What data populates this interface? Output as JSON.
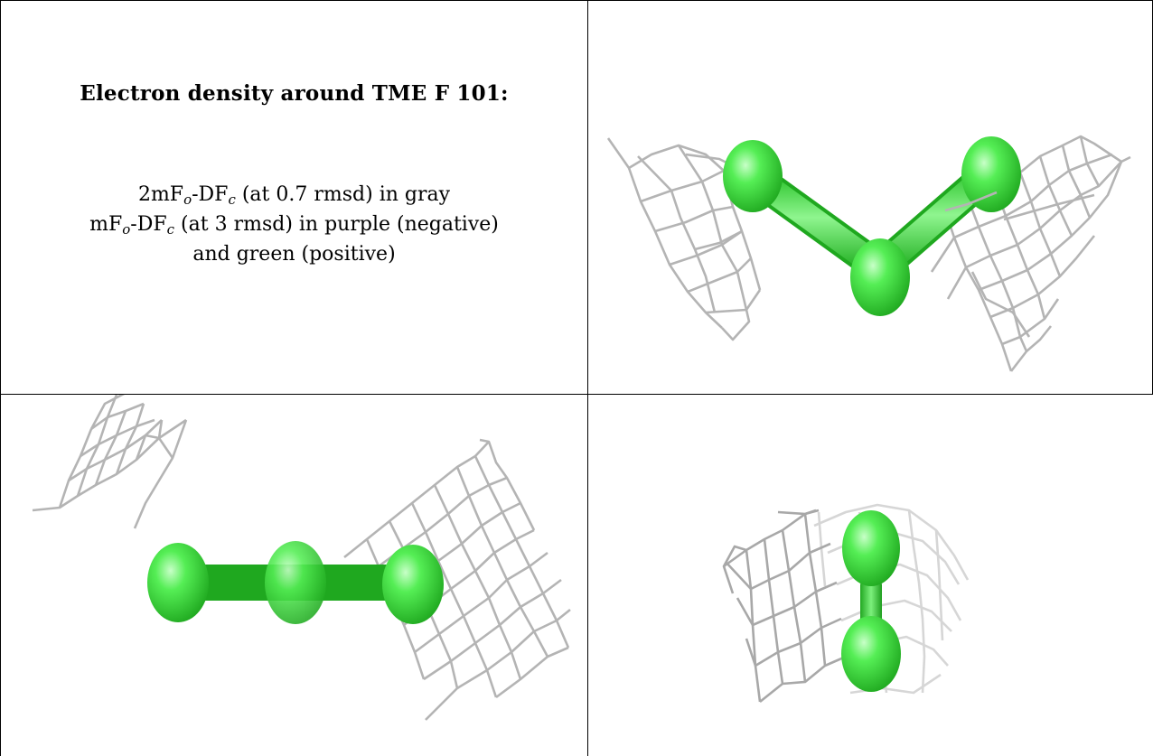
{
  "title": "Electron density around TME F 101:",
  "description": {
    "line1": {
      "prefix": "2mF",
      "sub1": "o",
      "mid": "-DF",
      "sub2": "c",
      "suffix": " (at 0.7 rmsd) in gray"
    },
    "line2": {
      "prefix": "mF",
      "sub1": "o",
      "mid": "-DF",
      "sub2": "c",
      "suffix": " (at 3 rmsd) in purple (negative)"
    },
    "line3": "and green (positive)"
  },
  "colors": {
    "mesh_gray": "#b4b4b4",
    "atom_green": "#33e033",
    "atom_highlight": "#c8ffc8",
    "border": "#000000"
  },
  "panels": [
    {
      "name": "view-top-right",
      "content": "bent three-atom ligand with gray density mesh"
    },
    {
      "name": "view-bottom-left",
      "content": "linear three-atom ligand with gray density mesh"
    },
    {
      "name": "view-bottom-right",
      "content": "end-on two-atom view with gray density mesh"
    }
  ]
}
